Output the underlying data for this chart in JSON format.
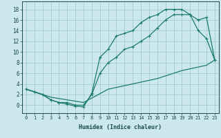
{
  "xlabel": "Humidex (Indice chaleur)",
  "bg_color": "#cce8ec",
  "grid_color": "#a0cccc",
  "line_color": "#1a7a6e",
  "xlim": [
    -0.5,
    23.5
  ],
  "ylim": [
    -1.5,
    19.5
  ],
  "xticks": [
    0,
    1,
    2,
    3,
    4,
    5,
    6,
    7,
    8,
    9,
    10,
    11,
    12,
    13,
    14,
    15,
    16,
    17,
    18,
    19,
    20,
    21,
    22,
    23
  ],
  "yticks": [
    0,
    2,
    4,
    6,
    8,
    10,
    12,
    14,
    16,
    18
  ],
  "line1_x": [
    0,
    1,
    2,
    3,
    4,
    5,
    6,
    7,
    8,
    9,
    10,
    11,
    12,
    13,
    14,
    15,
    16,
    17,
    18,
    19,
    20,
    21,
    22,
    23
  ],
  "line1_y": [
    3,
    2.5,
    2,
    1,
    0.5,
    0.2,
    -0.2,
    -0.3,
    2.2,
    9.0,
    10.5,
    13.0,
    13.5,
    14.0,
    15.5,
    16.5,
    17.0,
    18.0,
    18.0,
    18.0,
    17.0,
    14.0,
    12.5,
    8.5
  ],
  "line2_x": [
    0,
    1,
    2,
    3,
    4,
    5,
    6,
    7,
    8,
    9,
    10,
    11,
    12,
    13,
    14,
    15,
    16,
    17,
    18,
    19,
    20,
    21,
    22,
    23
  ],
  "line2_y": [
    3,
    2.5,
    2,
    1,
    0.5,
    0.5,
    0.0,
    0.0,
    2.0,
    6.0,
    8.0,
    9.0,
    10.5,
    11.0,
    12.0,
    13.0,
    14.5,
    16.0,
    17.0,
    17.0,
    17.0,
    16.0,
    16.5,
    8.5
  ],
  "line3_x": [
    0,
    3,
    7,
    10,
    13,
    16,
    19,
    22,
    23
  ],
  "line3_y": [
    3,
    1.5,
    0.5,
    3.0,
    4.0,
    5.0,
    6.5,
    7.5,
    8.5
  ],
  "tick_fontsize": 5.0,
  "xlabel_fontsize": 6.0
}
